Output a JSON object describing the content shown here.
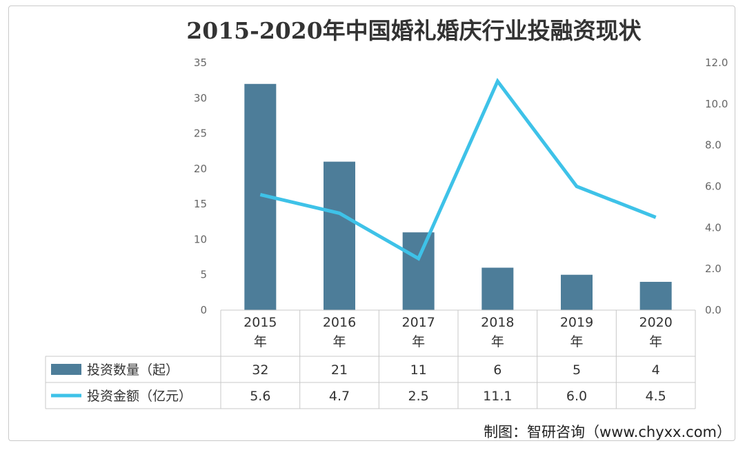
{
  "chart_data": {
    "type": "bar",
    "title": "2015-2020年中国婚礼婚庆行业投融资现状",
    "categories": [
      "2015年",
      "2016年",
      "2017年",
      "2018年",
      "2019年",
      "2020年"
    ],
    "series": [
      {
        "name": "投资数量（起）",
        "kind": "bar",
        "axis": "left",
        "color": "#4d7d99",
        "values": [
          32,
          21,
          11,
          6,
          5,
          4
        ]
      },
      {
        "name": "投资金额（亿元）",
        "kind": "line",
        "axis": "right",
        "color": "#3ec2e8",
        "values": [
          5.6,
          4.7,
          2.5,
          11.1,
          6.0,
          4.5
        ]
      }
    ],
    "y_left": {
      "min": 0,
      "max": 35,
      "ticks": [
        "0",
        "5",
        "10",
        "15",
        "20",
        "25",
        "30",
        "35"
      ]
    },
    "y_right": {
      "min": 0,
      "max": 12,
      "ticks": [
        "0.0",
        "2.0",
        "4.0",
        "6.0",
        "8.0",
        "10.0",
        "12.0"
      ]
    },
    "data_table": {
      "rows": [
        {
          "label": "投资数量（起）",
          "cells": [
            "32",
            "21",
            "11",
            "6",
            "5",
            "4"
          ]
        },
        {
          "label": "投资金额（亿元）",
          "cells": [
            "5.6",
            "4.7",
            "2.5",
            "11.1",
            "6.0",
            "4.5"
          ]
        }
      ]
    },
    "grid": false,
    "legend": "data-table"
  },
  "source": "制图：智研咨询（www.chyxx.com）"
}
